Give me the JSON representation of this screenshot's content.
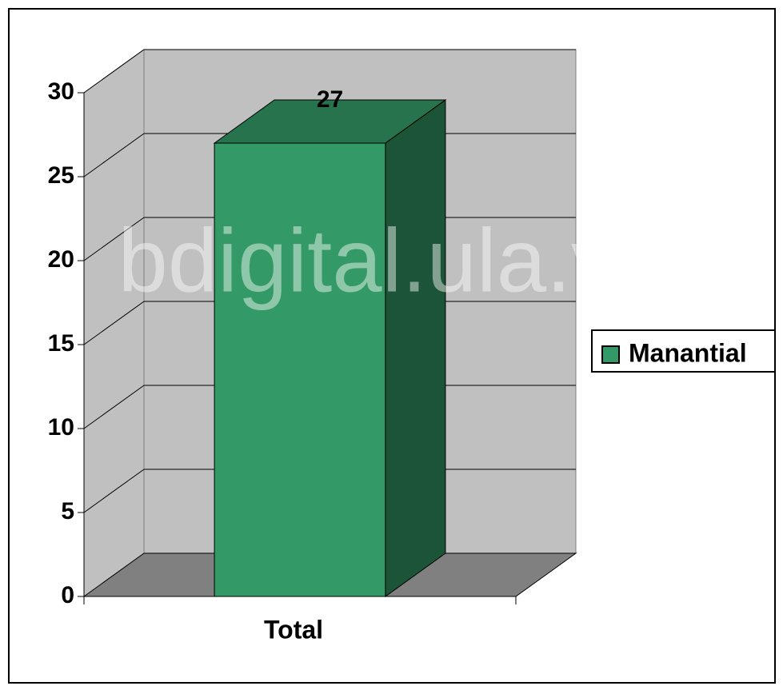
{
  "chart_data": {
    "type": "bar3d",
    "categories": [
      "Total"
    ],
    "series": [
      {
        "name": "Manantial",
        "color": "#339966",
        "values": [
          27
        ]
      }
    ],
    "ylim": [
      0,
      30
    ],
    "yticks": [
      0,
      5,
      10,
      15,
      20,
      25,
      30
    ],
    "grid": true,
    "legend": "right",
    "watermark": "bdigital.ula.ve"
  }
}
